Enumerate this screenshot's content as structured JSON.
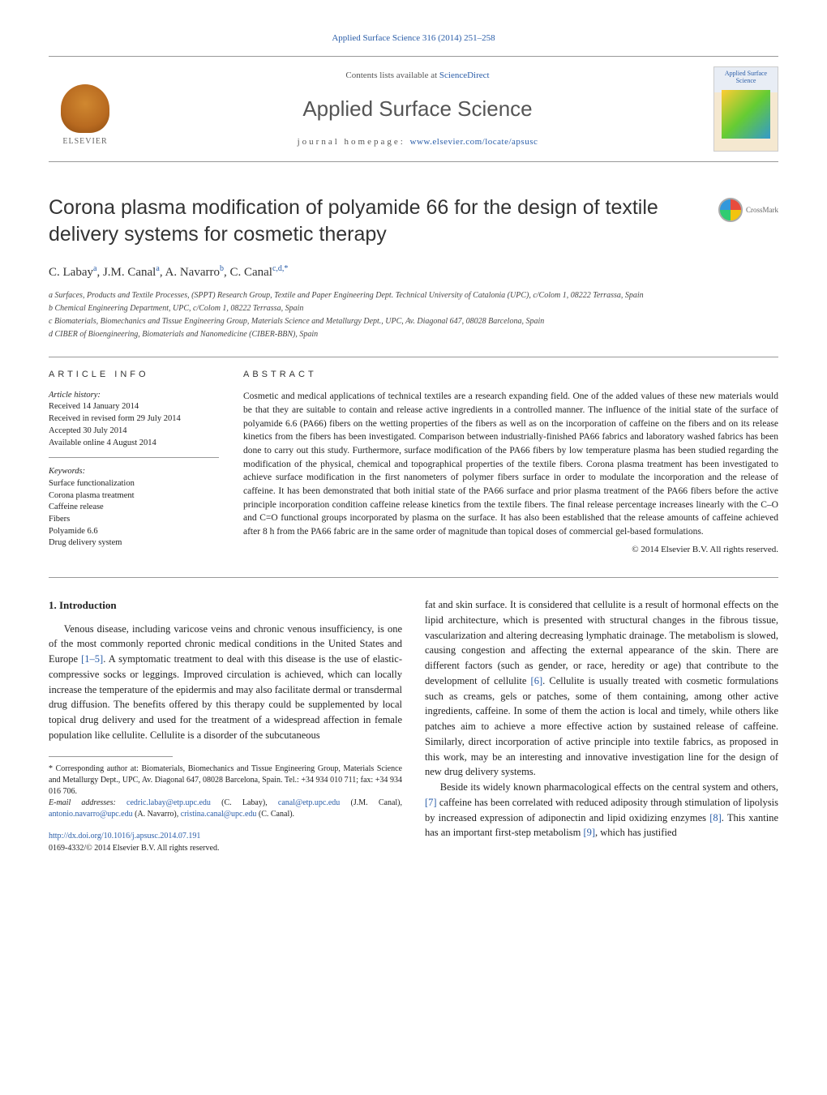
{
  "header": {
    "citation": "Applied Surface Science 316 (2014) 251–258",
    "contents_prefix": "Contents lists available at ",
    "contents_link": "ScienceDirect",
    "journal": "Applied Surface Science",
    "homepage_prefix": "journal homepage: ",
    "homepage_url": "www.elsevier.com/locate/apsusc",
    "publisher": "ELSEVIER",
    "cover_title": "Applied Surface Science",
    "crossmark": "CrossMark"
  },
  "article": {
    "title": "Corona plasma modification of polyamide 66 for the design of textile delivery systems for cosmetic therapy",
    "authors_html": "C. Labay<sup>a</sup>, J.M. Canal<sup>a</sup>, A. Navarro<sup>b</sup>, C. Canal<sup>c,d,*</sup>",
    "authors": [
      {
        "name": "C. Labay",
        "aff": "a"
      },
      {
        "name": "J.M. Canal",
        "aff": "a"
      },
      {
        "name": "A. Navarro",
        "aff": "b"
      },
      {
        "name": "C. Canal",
        "aff": "c,d,*"
      }
    ],
    "affiliations": [
      "a Surfaces, Products and Textile Processes, (SPPT) Research Group, Textile and Paper Engineering Dept. Technical University of Catalonia (UPC), c/Colom 1, 08222 Terrassa, Spain",
      "b Chemical Engineering Department, UPC, c/Colom 1, 08222 Terrassa, Spain",
      "c Biomaterials, Biomechanics and Tissue Engineering Group, Materials Science and Metallurgy Dept., UPC, Av. Diagonal 647, 08028 Barcelona, Spain",
      "d CIBER of Bioengineering, Biomaterials and Nanomedicine (CIBER-BBN), Spain"
    ]
  },
  "info": {
    "heading": "article info",
    "history_label": "Article history:",
    "history": [
      "Received 14 January 2014",
      "Received in revised form 29 July 2014",
      "Accepted 30 July 2014",
      "Available online 4 August 2014"
    ],
    "keywords_label": "Keywords:",
    "keywords": [
      "Surface functionalization",
      "Corona plasma treatment",
      "Caffeine release",
      "Fibers",
      "Polyamide 6.6",
      "Drug delivery system"
    ]
  },
  "abstract": {
    "heading": "abstract",
    "text": "Cosmetic and medical applications of technical textiles are a research expanding field. One of the added values of these new materials would be that they are suitable to contain and release active ingredients in a controlled manner. The influence of the initial state of the surface of polyamide 6.6 (PA66) fibers on the wetting properties of the fibers as well as on the incorporation of caffeine on the fibers and on its release kinetics from the fibers has been investigated. Comparison between industrially-finished PA66 fabrics and laboratory washed fabrics has been done to carry out this study. Furthermore, surface modification of the PA66 fibers by low temperature plasma has been studied regarding the modification of the physical, chemical and topographical properties of the textile fibers. Corona plasma treatment has been investigated to achieve surface modification in the first nanometers of polymer fibers surface in order to modulate the incorporation and the release of caffeine. It has been demonstrated that both initial state of the PA66 surface and prior plasma treatment of the PA66 fibers before the active principle incorporation condition caffeine release kinetics from the textile fibers. The final release percentage increases linearly with the C–O and C=O functional groups incorporated by plasma on the surface. It has also been established that the release amounts of caffeine achieved after 8 h from the PA66 fabric are in the same order of magnitude than topical doses of commercial gel-based formulations.",
    "copyright": "© 2014 Elsevier B.V. All rights reserved."
  },
  "body": {
    "section_number": "1.",
    "section_title": "Introduction",
    "para1_a": "Venous disease, including varicose veins and chronic venous insufficiency, is one of the most commonly reported chronic medical conditions in the United States and Europe ",
    "para1_ref1": "[1–5]",
    "para1_b": ". A symptomatic treatment to deal with this disease is the use of elastic-compressive socks or leggings. Improved circulation is achieved, which can locally increase the temperature of the epidermis and may also facilitate dermal or transdermal drug diffusion. The benefits offered by this therapy could be supplemented by local topical drug delivery and used for the treatment of a widespread affection in female population like cellulite. Cellulite is a disorder of the subcutaneous",
    "para2_a": "fat and skin surface. It is considered that cellulite is a result of hormonal effects on the lipid architecture, which is presented with structural changes in the fibrous tissue, vascularization and altering decreasing lymphatic drainage. The metabolism is slowed, causing congestion and affecting the external appearance of the skin. There are different factors (such as gender, or race, heredity or age) that contribute to the development of cellulite ",
    "para2_ref1": "[6]",
    "para2_b": ". Cellulite is usually treated with cosmetic formulations such as creams, gels or patches, some of them containing, among other active ingredients, caffeine. In some of them the action is local and timely, while others like patches aim to achieve a more effective action by sustained release of caffeine. Similarly, direct incorporation of active principle into textile fabrics, as proposed in this work, may be an interesting and innovative investigation line for the design of new drug delivery systems.",
    "para3_a": "Beside its widely known pharmacological effects on the central system and others, ",
    "para3_ref1": "[7]",
    "para3_b": " caffeine has been correlated with reduced adiposity through stimulation of lipolysis by increased expression of adiponectin and lipid oxidizing enzymes ",
    "para3_ref2": "[8]",
    "para3_c": ". This xantine has an important first-step metabolism ",
    "para3_ref3": "[9]",
    "para3_d": ", which has justified"
  },
  "footnotes": {
    "corresponding": "* Corresponding author at: Biomaterials, Biomechanics and Tissue Engineering Group, Materials Science and Metallurgy Dept., UPC, Av. Diagonal 647, 08028 Barcelona, Spain. Tel.: +34 934 010 711; fax: +34 934 016 706.",
    "email_label": "E-mail addresses: ",
    "emails": [
      {
        "addr": "cedric.labay@etp.upc.edu",
        "who": "(C. Labay)"
      },
      {
        "addr": "canal@etp.upc.edu",
        "who": "(J.M. Canal)"
      },
      {
        "addr": "antonio.navarro@upc.edu",
        "who": "(A. Navarro)"
      },
      {
        "addr": "cristina.canal@upc.edu",
        "who": "(C. Canal)"
      }
    ],
    "doi": "http://dx.doi.org/10.1016/j.apsusc.2014.07.191",
    "issn_copyright": "0169-4332/© 2014 Elsevier B.V. All rights reserved."
  },
  "colors": {
    "link": "#2a5da8",
    "text": "#222222",
    "rule": "#999999"
  }
}
